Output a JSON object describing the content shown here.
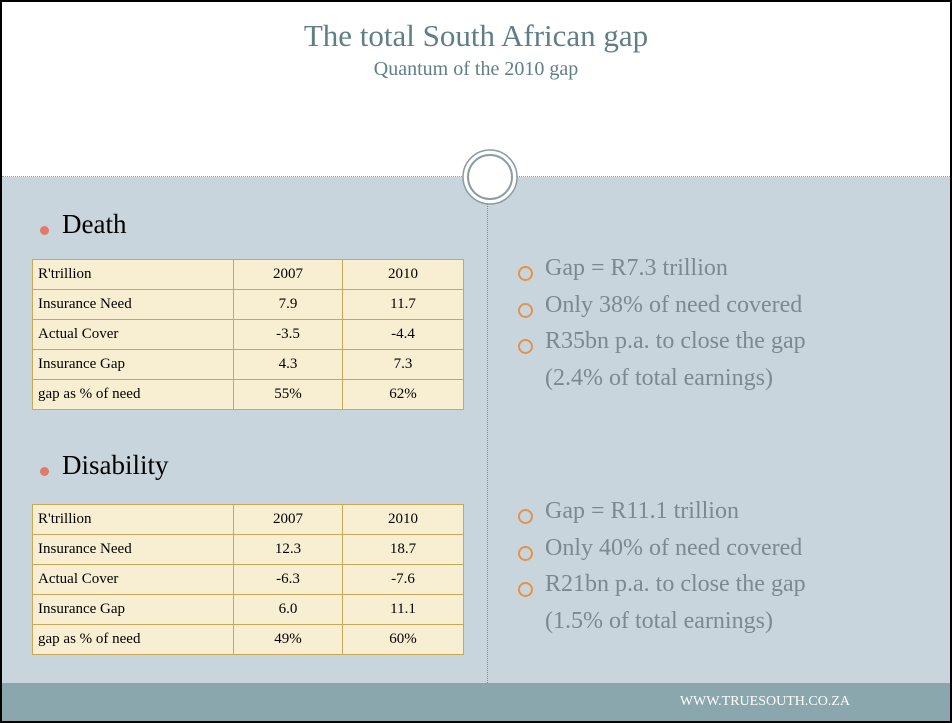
{
  "header": {
    "title": "The total South African gap",
    "subtitle": "Quantum of the 2010 gap"
  },
  "sections": [
    {
      "heading": "Death",
      "table": {
        "header": [
          "R'trillion",
          "2007",
          "2010"
        ],
        "rows": [
          [
            "Insurance Need",
            "7.9",
            "11.7"
          ],
          [
            "Actual Cover",
            "-3.5",
            "-4.4"
          ],
          [
            "Insurance Gap",
            "4.3",
            "7.3"
          ],
          [
            "gap as % of need",
            "55%",
            "62%"
          ]
        ]
      },
      "points": [
        [
          "Gap = R7.3 trillion"
        ],
        [
          "Only 38% of need covered"
        ],
        [
          "R35bn p.a. to close the gap",
          "(2.4% of total earnings)"
        ]
      ]
    },
    {
      "heading": "Disability",
      "table": {
        "header": [
          "R'trillion",
          "2007",
          "2010"
        ],
        "rows": [
          [
            "Insurance Need",
            "12.3",
            "18.7"
          ],
          [
            "Actual Cover",
            "-6.3",
            "-7.6"
          ],
          [
            "Insurance Gap",
            "6.0",
            "11.1"
          ],
          [
            "gap as % of need",
            "49%",
            "60%"
          ]
        ]
      },
      "points": [
        [
          "Gap = R11.1 trillion"
        ],
        [
          "Only 40% of need covered"
        ],
        [
          "R21bn p.a. to close the gap",
          "(1.5% of total earnings)"
        ]
      ]
    }
  ],
  "footer": "WWW.TRUESOUTH.CO.ZA"
}
